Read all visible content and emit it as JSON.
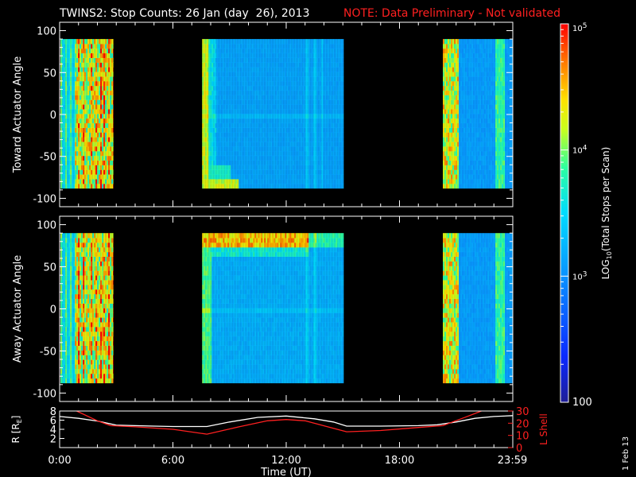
{
  "header": {
    "title": "TWINS2: Stop Counts: 26 Jan (day  26), 2013",
    "note": "NOTE: Data Preliminary - Not validated"
  },
  "colors": {
    "background": "#000000",
    "axes": "#ffffff",
    "note": "#ff2020",
    "r_line": "#ffffff",
    "l_shell_line": "#ff2020"
  },
  "chart_data": [
    {
      "type": "heatmap",
      "name": "toward-panel",
      "ylabel": "Toward Actuator Angle",
      "xlim_hours": [
        0,
        24
      ],
      "ylim": [
        -110,
        110
      ],
      "y_ticks": [
        "100",
        "50",
        "0",
        "-50",
        "-100"
      ],
      "y_tick_values": [
        100,
        50,
        0,
        -50,
        -100
      ],
      "data_angle_range": [
        -88,
        90
      ],
      "blocks": [
        {
          "start": 0.05,
          "end": 2.85,
          "profile": "hot_early"
        },
        {
          "start": 7.55,
          "end": 15.05,
          "profile": "middle_toward"
        },
        {
          "start": 20.3,
          "end": 23.98,
          "profile": "late"
        }
      ]
    },
    {
      "type": "heatmap",
      "name": "away-panel",
      "ylabel": "Away Actuator Angle",
      "xlim_hours": [
        0,
        24
      ],
      "ylim": [
        -110,
        110
      ],
      "y_ticks": [
        "100",
        "50",
        "0",
        "-50",
        "-100"
      ],
      "y_tick_values": [
        100,
        50,
        0,
        -50,
        -100
      ],
      "data_angle_range": [
        -88,
        90
      ],
      "blocks": [
        {
          "start": 0.05,
          "end": 2.85,
          "profile": "hot_early"
        },
        {
          "start": 7.55,
          "end": 15.05,
          "profile": "middle_away"
        },
        {
          "start": 20.3,
          "end": 23.98,
          "profile": "late"
        }
      ]
    },
    {
      "type": "line",
      "name": "orbit-panel",
      "ylabel_left": "R [R",
      "ylabel_left_sub": "E",
      "ylabel_left_end": "]",
      "ylabel_right": "L Shell",
      "xlabel": "Time (UT)",
      "x_ticks": [
        "0:00",
        "6:00",
        "12:00",
        "18:00",
        "23:59"
      ],
      "x_tick_values": [
        0,
        6,
        12,
        18,
        23.98
      ],
      "left_ylim": [
        0,
        8
      ],
      "left_ticks": [
        "8",
        "6",
        "4",
        "2"
      ],
      "left_tick_values": [
        8,
        6,
        4,
        2
      ],
      "right_ylim": [
        0,
        30
      ],
      "right_ticks": [
        "30",
        "20",
        "10",
        "0"
      ],
      "right_tick_values": [
        30,
        20,
        10,
        0
      ],
      "series": [
        {
          "name": "R",
          "axis": "left",
          "x": [
            0,
            1.0,
            2.0,
            3.0,
            4.0,
            5.0,
            6.0,
            7.0,
            7.8,
            9.0,
            10.5,
            12.0,
            13.5,
            14.5,
            15.2,
            17.0,
            19.0,
            20.0,
            21.0,
            22.0,
            23.0,
            24.0
          ],
          "y": [
            6.8,
            6.4,
            5.8,
            4.9,
            4.8,
            4.7,
            4.6,
            4.6,
            4.6,
            5.6,
            6.6,
            6.9,
            6.3,
            5.6,
            4.7,
            4.7,
            4.8,
            5.0,
            5.6,
            6.4,
            6.8,
            7.0
          ]
        },
        {
          "name": "L Shell",
          "axis": "right",
          "x": [
            0.9,
            2.0,
            2.7,
            4.0,
            6.0,
            7.8,
            9.5,
            11.0,
            12.0,
            13.0,
            14.2,
            15.2,
            17.0,
            19.0,
            20.3,
            21.5,
            22.5
          ],
          "y": [
            30,
            22,
            18,
            17,
            15,
            11,
            17,
            22,
            23,
            22,
            17,
            13,
            14,
            16.5,
            18,
            25,
            31
          ]
        }
      ]
    }
  ],
  "colorbar": {
    "label_log": "LOG",
    "label_sub": "10",
    "label_rest": "(Total Stops per Scan)",
    "ticks": [
      {
        "base": "10",
        "exp": "5",
        "value": 5
      },
      {
        "base": "10",
        "exp": "4",
        "value": 4
      },
      {
        "base": "10",
        "exp": "3",
        "value": 3
      },
      {
        "base": "100",
        "exp": "",
        "value": 2
      }
    ],
    "range_log": [
      2,
      5
    ]
  },
  "footer": {
    "date_stamp": "1 Feb 13"
  }
}
